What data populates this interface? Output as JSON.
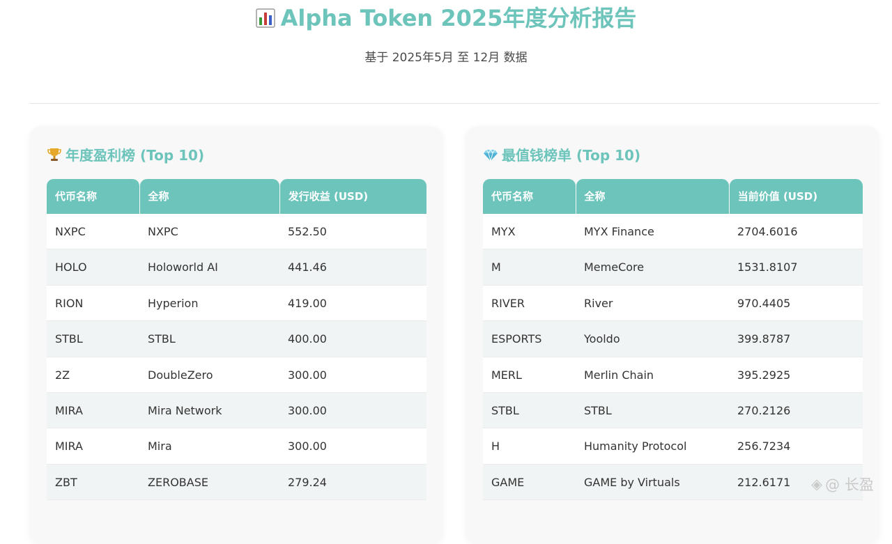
{
  "header": {
    "title": "Alpha Token 2025年度分析报告",
    "subtitle": "基于 2025年5月 至 12月 数据"
  },
  "profit_table": {
    "title": "年度盈利榜 (Top 10)",
    "columns": [
      "代币名称",
      "全称",
      "发行收益 (USD)"
    ],
    "rows": [
      [
        "NXPC",
        "NXPC",
        "552.50"
      ],
      [
        "HOLO",
        "Holoworld AI",
        "441.46"
      ],
      [
        "RION",
        "Hyperion",
        "419.00"
      ],
      [
        "STBL",
        "STBL",
        "400.00"
      ],
      [
        "2Z",
        "DoubleZero",
        "300.00"
      ],
      [
        "MIRA",
        "Mira Network",
        "300.00"
      ],
      [
        "MIRA",
        "Mira",
        "300.00"
      ],
      [
        "ZBT",
        "ZEROBASE",
        "279.24"
      ]
    ]
  },
  "value_table": {
    "title": "最值钱榜单 (Top 10)",
    "columns": [
      "代币名称",
      "全称",
      "当前价值 (USD)"
    ],
    "rows": [
      [
        "MYX",
        "MYX Finance",
        "2704.6016"
      ],
      [
        "M",
        "MemeCore",
        "1531.8107"
      ],
      [
        "RIVER",
        "River",
        "970.4405"
      ],
      [
        "ESPORTS",
        "Yooldo",
        "399.8787"
      ],
      [
        "MERL",
        "Merlin Chain",
        "395.2925"
      ],
      [
        "STBL",
        "STBL",
        "270.2126"
      ],
      [
        "H",
        "Humanity Protocol",
        "256.7234"
      ],
      [
        "GAME",
        "GAME by Virtuals",
        "212.6171"
      ]
    ]
  },
  "watermark": {
    "symbol": "◈",
    "text": "@ 长盈"
  },
  "colors": {
    "accent": "#6cc4bb",
    "row_alt": "#f1f4f4",
    "card_bg": "#f8f8f8"
  },
  "icons": {
    "title": "bar-chart-icon",
    "profit": "trophy-icon",
    "value": "gem-icon"
  }
}
